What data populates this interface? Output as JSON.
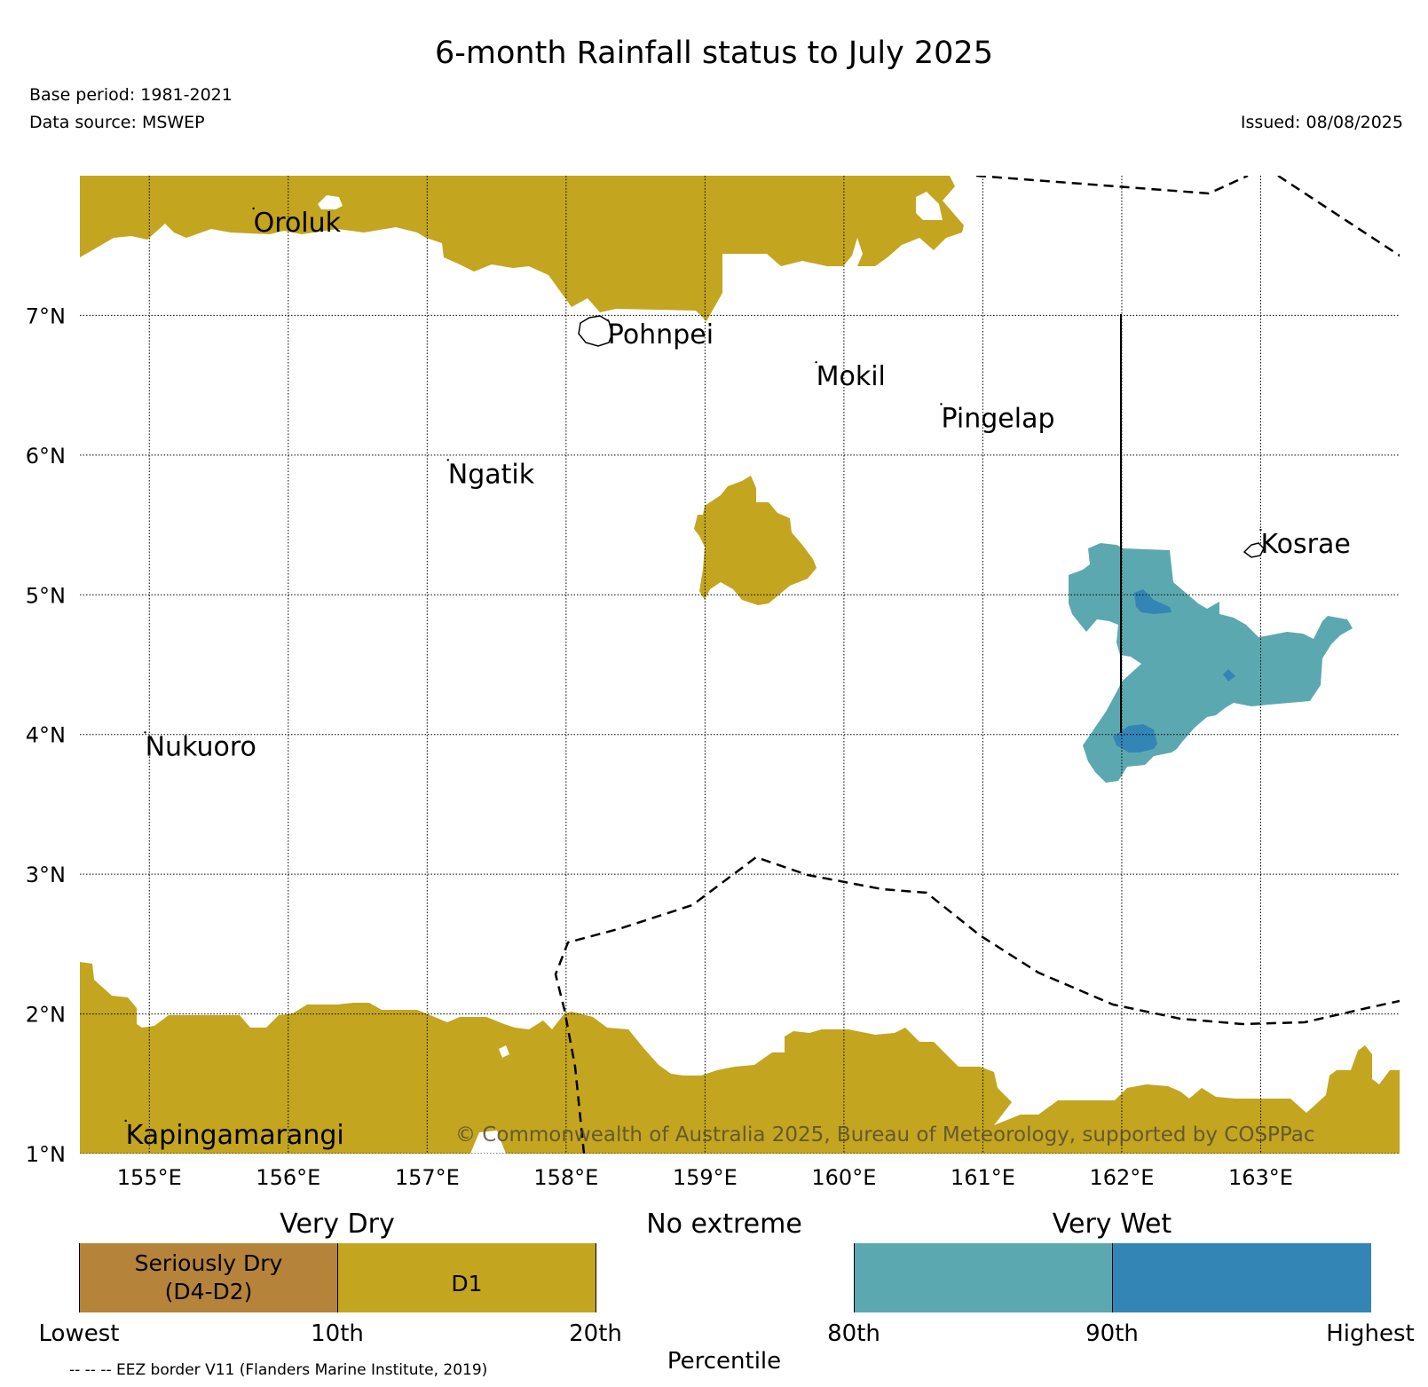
{
  "title": "6-month Rainfall status to July 2025",
  "base_period": "Base period: 1981-2021",
  "data_source": "Data source: MSWEP",
  "issued": "Issued: 08/08/2025",
  "copyright": "© Commonwealth of Australia 2025, Bureau of Meteorology, supported by COSPPac",
  "eez_note": "-- -- -- EEZ border V11 (Flanders Marine Institute, 2019)",
  "colors": {
    "seriously_dry": "#b5833a",
    "d1": "#c3a51f",
    "no_extreme": "#ffffff",
    "very_wet_80_90": "#5ba8b0",
    "very_wet_90_plus": "#3385b6"
  },
  "map": {
    "lon_range": [
      154.5,
      164.0
    ],
    "lat_range": [
      1.0,
      8.0
    ],
    "lon_ticks": [
      "155°E",
      "156°E",
      "157°E",
      "158°E",
      "159°E",
      "160°E",
      "161°E",
      "162°E",
      "163°E"
    ],
    "lat_ticks": [
      "1°N",
      "2°N",
      "3°N",
      "4°N",
      "5°N",
      "6°N",
      "7°N"
    ],
    "places": [
      {
        "name": "Oroluk",
        "lon": 155.75,
        "lat": 7.6
      },
      {
        "name": "Pohnpei",
        "lon": 158.3,
        "lat": 6.8
      },
      {
        "name": "Mokil",
        "lon": 159.8,
        "lat": 6.5
      },
      {
        "name": "Pingelap",
        "lon": 160.7,
        "lat": 6.2
      },
      {
        "name": "Ngatik",
        "lon": 157.15,
        "lat": 5.8
      },
      {
        "name": "Kosrae",
        "lon": 163.0,
        "lat": 5.3
      },
      {
        "name": "Nukuoro",
        "lon": 154.97,
        "lat": 3.85
      },
      {
        "name": "Kapingamarangi",
        "lon": 154.83,
        "lat": 1.07
      }
    ]
  },
  "legend": {
    "categories": [
      "Very Dry",
      "No extreme",
      "Very Wet"
    ],
    "cells": [
      "Seriously Dry\n(D4-D2)",
      "D1",
      "",
      "",
      ""
    ],
    "percentiles": [
      "Lowest",
      "10th",
      "20th",
      "80th",
      "90th",
      "Highest"
    ],
    "axis_label": "Percentile"
  }
}
